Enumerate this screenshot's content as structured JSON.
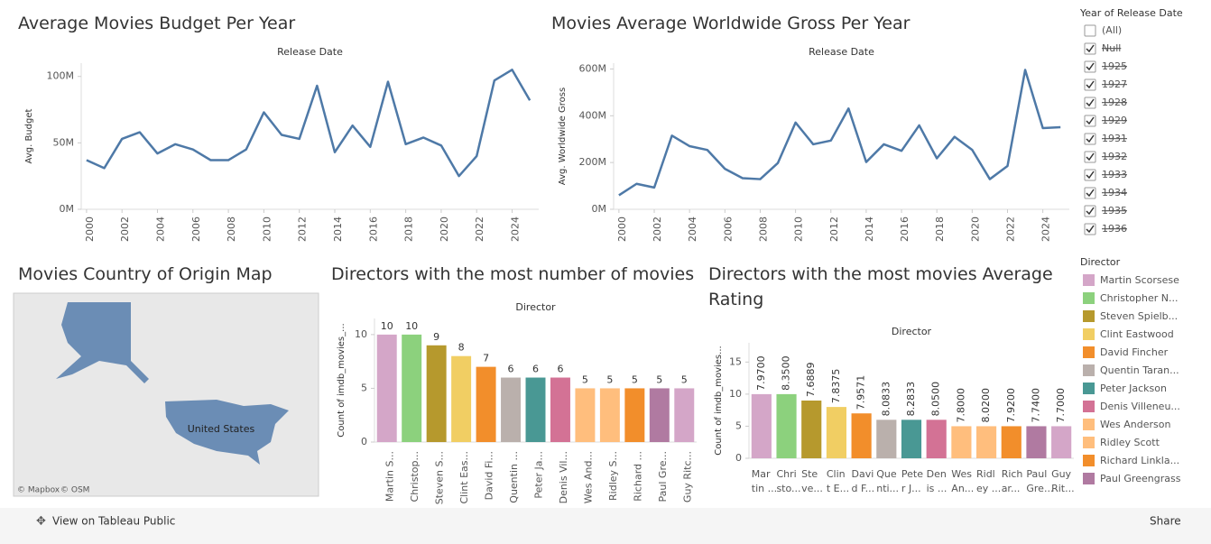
{
  "chart_data": [
    {
      "type": "line",
      "title": "Average Movies Budget Per Year",
      "header": "Release Date",
      "y_label": "Avg. Budget",
      "color": "#4e79a7",
      "x": [
        2000,
        2001,
        2002,
        2003,
        2004,
        2005,
        2006,
        2007,
        2008,
        2009,
        2010,
        2011,
        2012,
        2013,
        2014,
        2015,
        2016,
        2017,
        2018,
        2019,
        2020,
        2021,
        2022,
        2023,
        2024,
        2025
      ],
      "values": [
        37,
        31,
        53,
        58,
        42,
        49,
        45,
        37,
        37,
        45,
        73,
        56,
        53,
        93,
        43,
        63,
        47,
        96,
        49,
        54,
        48,
        25,
        40,
        97,
        105,
        82
      ],
      "xlim": [
        1999.7,
        2025.5
      ],
      "xticks": [
        2000,
        2002,
        2004,
        2006,
        2008,
        2010,
        2012,
        2014,
        2016,
        2018,
        2020,
        2022,
        2024
      ],
      "ylim": [
        0,
        110
      ],
      "yticks": [
        {
          "value": 0,
          "label": "0M"
        },
        {
          "value": 50,
          "label": "50M"
        },
        {
          "value": 100,
          "label": "100M"
        }
      ],
      "grid": false
    },
    {
      "type": "line",
      "title": "Movies Average Worldwide Gross Per Year",
      "header": "Release Date",
      "y_label": "Avg. Worldwide Gross",
      "color": "#4e79a7",
      "x": [
        2000,
        2001,
        2002,
        2003,
        2004,
        2005,
        2006,
        2007,
        2008,
        2009,
        2010,
        2011,
        2012,
        2013,
        2014,
        2015,
        2016,
        2017,
        2018,
        2019,
        2020,
        2021,
        2022,
        2023,
        2024,
        2025
      ],
      "values": [
        60,
        109,
        93,
        315,
        270,
        254,
        173,
        133,
        129,
        198,
        371,
        278,
        294,
        431,
        202,
        278,
        250,
        359,
        218,
        310,
        254,
        129,
        185,
        596,
        347,
        351
      ],
      "xlim": [
        1999.7,
        2025.5
      ],
      "xticks": [
        2000,
        2002,
        2004,
        2006,
        2008,
        2010,
        2012,
        2014,
        2016,
        2018,
        2020,
        2022,
        2024
      ],
      "ylim": [
        0,
        625
      ],
      "yticks": [
        {
          "value": 0,
          "label": "0M"
        },
        {
          "value": 200,
          "label": "200M"
        },
        {
          "value": 400,
          "label": "400M"
        },
        {
          "value": 600,
          "label": "600M"
        }
      ],
      "grid": false
    },
    {
      "type": "bar",
      "title": "Directors with the most number of movies",
      "header": "Director",
      "y_label": "Count of imdb_movies_...",
      "categories": [
        "Martin S...",
        "Christop...",
        "Steven S...",
        "Clint Eas...",
        "David Fi...",
        "Quentin ...",
        "Peter Ja...",
        "Denis Vil...",
        "Wes And...",
        "Ridley S...",
        "Richard ...",
        "Paul Gre...",
        "Guy Ritc..."
      ],
      "values": [
        10,
        10,
        9,
        8,
        7,
        6,
        6,
        6,
        5,
        5,
        5,
        5,
        5
      ],
      "colors": [
        "#d4a6c8",
        "#8cd17d",
        "#b6992d",
        "#f1ce63",
        "#f28e2b",
        "#bab0ac",
        "#499894",
        "#d37295",
        "#ffbe7d",
        "#ffbe7d",
        "#f28e2b",
        "#b07aa1",
        "#d4a6c8"
      ],
      "ylim": [
        0,
        11.5
      ],
      "yticks": [
        0,
        5,
        10
      ],
      "grid": false
    },
    {
      "type": "bar",
      "title": "Directors with the most movies Average Rating",
      "header": "Director",
      "y_label": "Count of imdb_movies...",
      "categories": [
        [
          "Mar",
          "tin ..."
        ],
        [
          "Chri",
          "sto..."
        ],
        [
          "Ste",
          "ve..."
        ],
        [
          "Clin",
          "t E..."
        ],
        [
          "Davi",
          "d F..."
        ],
        [
          "Que",
          "nti..."
        ],
        [
          "Pete",
          "r J..."
        ],
        [
          "Den",
          "is ..."
        ],
        [
          "Wes",
          "An..."
        ],
        [
          "Ridl",
          "ey ..."
        ],
        [
          "Rich",
          "ar..."
        ],
        [
          "Paul",
          "Gre..."
        ],
        [
          "Guy",
          "Rit..."
        ]
      ],
      "values": [
        10,
        10,
        9,
        8,
        7,
        6,
        6,
        6,
        5,
        5,
        5,
        5,
        5
      ],
      "rating_labels": [
        "7.9700",
        "8.3500",
        "7.6889",
        "7.8375",
        "7.9571",
        "8.0833",
        "8.2833",
        "8.0500",
        "7.8000",
        "8.0200",
        "7.9200",
        "7.7400",
        "7.7000"
      ],
      "colors": [
        "#d4a6c8",
        "#8cd17d",
        "#b6992d",
        "#f1ce63",
        "#f28e2b",
        "#bab0ac",
        "#499894",
        "#d37295",
        "#ffbe7d",
        "#ffbe7d",
        "#f28e2b",
        "#b07aa1",
        "#d4a6c8"
      ],
      "ylim": [
        0,
        18
      ],
      "yticks": [
        0,
        5,
        10,
        15
      ],
      "grid": false
    }
  ],
  "map": {
    "title": "Movies Country of Origin Map",
    "label": "United States",
    "credits": [
      "© Mapbox",
      "© OSM"
    ]
  },
  "year_filter": {
    "title": "Year of Release Date",
    "items": [
      {
        "label": "(All)",
        "checked": false
      },
      {
        "label": "Null",
        "checked": true
      },
      {
        "label": "1925",
        "checked": true
      },
      {
        "label": "1927",
        "checked": true
      },
      {
        "label": "1928",
        "checked": true
      },
      {
        "label": "1929",
        "checked": true
      },
      {
        "label": "1931",
        "checked": true
      },
      {
        "label": "1932",
        "checked": true
      },
      {
        "label": "1933",
        "checked": true
      },
      {
        "label": "1934",
        "checked": true
      },
      {
        "label": "1935",
        "checked": true
      },
      {
        "label": "1936",
        "checked": true
      }
    ]
  },
  "director_legend": {
    "title": "Director",
    "items": [
      {
        "label": "Martin Scorsese",
        "color": "#d4a6c8"
      },
      {
        "label": "Christopher N...",
        "color": "#8cd17d"
      },
      {
        "label": "Steven Spielb...",
        "color": "#b6992d"
      },
      {
        "label": "Clint Eastwood",
        "color": "#f1ce63"
      },
      {
        "label": "David Fincher",
        "color": "#f28e2b"
      },
      {
        "label": "Quentin Taran...",
        "color": "#bab0ac"
      },
      {
        "label": "Peter Jackson",
        "color": "#499894"
      },
      {
        "label": "Denis Villeneu...",
        "color": "#d37295"
      },
      {
        "label": "Wes Anderson",
        "color": "#ffbe7d"
      },
      {
        "label": "Ridley Scott",
        "color": "#ffbe7d"
      },
      {
        "label": "Richard Linkla...",
        "color": "#f28e2b"
      },
      {
        "label": "Paul Greengrass",
        "color": "#b07aa1"
      }
    ]
  },
  "toolbar": {
    "view_link": "View on Tableau Public",
    "share": "Share"
  }
}
